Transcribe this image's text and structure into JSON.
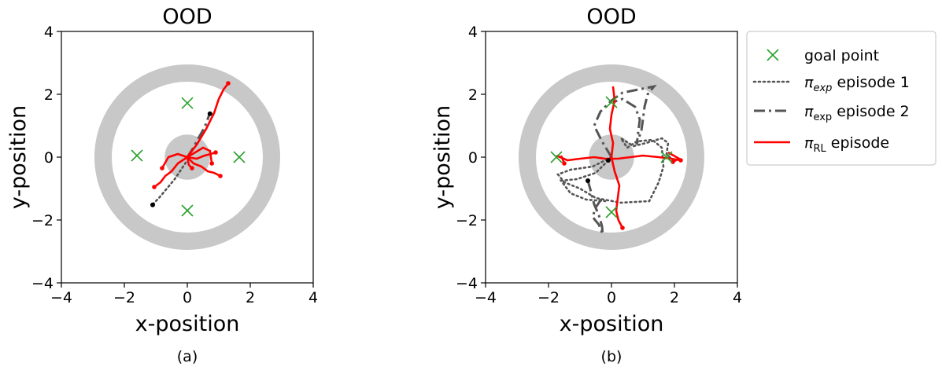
{
  "colors": {
    "ring": "#c8c8c8",
    "goal": "#2ca02c",
    "rl": "#ff0000",
    "exp": "#555555",
    "start": "#000000"
  },
  "chart_data": [
    {
      "type": "scatter",
      "title": "OOD",
      "caption": "(a)",
      "xlabel": "x-position",
      "ylabel": "y-position",
      "xlim": [
        -4,
        4
      ],
      "ylim": [
        -4,
        4
      ],
      "xticks": [
        "−4",
        "−2",
        "0",
        "2",
        "4"
      ],
      "yticks": [
        "4",
        "2",
        "0",
        "−2",
        "−4"
      ],
      "regions": {
        "outer_ring_outer_radius": 2.95,
        "outer_ring_inner_radius": 2.4,
        "inner_disk_radius": 0.72
      },
      "goal_points": [
        [
          0,
          1.72
        ],
        [
          -1.6,
          0.05
        ],
        [
          1.65,
          0
        ],
        [
          0,
          -1.7
        ]
      ],
      "series": [
        {
          "kind": "exp1",
          "points": [
            [
              -1.1,
              -1.5
            ],
            [
              -0.9,
              -1.3
            ],
            [
              -0.65,
              -1.0
            ],
            [
              -0.4,
              -0.7
            ],
            [
              -0.2,
              -0.4
            ],
            [
              0,
              -0.1
            ]
          ]
        },
        {
          "kind": "exp2",
          "points": [
            [
              0,
              0
            ],
            [
              0.18,
              0.28
            ],
            [
              0.35,
              0.6
            ],
            [
              0.55,
              0.95
            ],
            [
              0.7,
              1.35
            ]
          ]
        },
        {
          "kind": "rl",
          "points": [
            [
              0,
              0
            ],
            [
              0.3,
              0.4
            ],
            [
              0.6,
              0.9
            ],
            [
              0.85,
              1.4
            ],
            [
              1.0,
              1.85
            ],
            [
              1.15,
              2.15
            ],
            [
              1.3,
              2.35
            ]
          ]
        },
        {
          "kind": "rl",
          "points": [
            [
              0,
              0
            ],
            [
              -0.3,
              -0.2
            ],
            [
              -0.5,
              -0.45
            ],
            [
              -0.7,
              -0.6
            ],
            [
              -0.85,
              -0.8
            ],
            [
              -1.05,
              -0.95
            ]
          ]
        },
        {
          "kind": "rl",
          "points": [
            [
              0,
              0
            ],
            [
              -0.3,
              0.1
            ],
            [
              -0.6,
              0.0
            ],
            [
              -0.8,
              -0.35
            ]
          ]
        },
        {
          "kind": "rl",
          "points": [
            [
              0,
              0
            ],
            [
              0.3,
              -0.05
            ],
            [
              0.55,
              0.05
            ],
            [
              0.75,
              0.1
            ],
            [
              0.9,
              0.15
            ]
          ]
        },
        {
          "kind": "rl",
          "points": [
            [
              0,
              0
            ],
            [
              0.2,
              -0.2
            ],
            [
              0.45,
              -0.3
            ],
            [
              0.65,
              -0.45
            ],
            [
              0.85,
              -0.5
            ],
            [
              1.05,
              -0.6
            ]
          ]
        },
        {
          "kind": "rl",
          "points": [
            [
              0,
              0
            ],
            [
              0.25,
              0.15
            ],
            [
              0.5,
              0.3
            ],
            [
              0.72,
              0.2
            ],
            [
              0.78,
              -0.2
            ]
          ]
        },
        {
          "kind": "rl",
          "points": [
            [
              0,
              0
            ],
            [
              0.05,
              -0.25
            ],
            [
              0.15,
              -0.35
            ]
          ]
        }
      ],
      "start_points": [
        [
          -1.1,
          -1.52
        ],
        [
          0.72,
          1.38
        ]
      ]
    },
    {
      "type": "scatter",
      "title": "OOD",
      "caption": "(b)",
      "xlabel": "x-position",
      "ylabel": "y-position",
      "xlim": [
        -4,
        4
      ],
      "ylim": [
        -4,
        4
      ],
      "xticks": [
        "−4",
        "−2",
        "0",
        "2",
        "4"
      ],
      "yticks": [
        "4",
        "2",
        "0",
        "−2",
        "−4"
      ],
      "regions": {
        "outer_ring_outer_radius": 2.95,
        "outer_ring_inner_radius": 2.4,
        "inner_disk_radius": 0.72
      },
      "goal_points": [
        [
          0,
          1.75
        ],
        [
          -1.75,
          0
        ],
        [
          1.75,
          0
        ],
        [
          0,
          -1.75
        ]
      ],
      "series": [
        {
          "kind": "exp1",
          "points": [
            [
              0,
              0
            ],
            [
              -0.6,
              -0.3
            ],
            [
              -1.3,
              -0.4
            ],
            [
              -1.7,
              -0.55
            ],
            [
              -1.5,
              -0.8
            ],
            [
              -1.0,
              -1.0
            ],
            [
              -0.5,
              -1.3
            ],
            [
              0.3,
              -1.45
            ],
            [
              1.2,
              -1.4
            ],
            [
              1.5,
              -0.8
            ],
            [
              1.65,
              -0.3
            ],
            [
              1.6,
              0.3
            ],
            [
              1.3,
              0.55
            ],
            [
              0.8,
              0.5
            ],
            [
              0.5,
              0.3
            ],
            [
              0.3,
              0.6
            ],
            [
              0.7,
              0.35
            ],
            [
              1.1,
              0.45
            ],
            [
              1.6,
              0.6
            ],
            [
              1.8,
              0.45
            ],
            [
              1.75,
              0.1
            ],
            [
              1.95,
              -0.1
            ]
          ]
        },
        {
          "kind": "exp1",
          "points": [
            [
              0,
              0
            ],
            [
              -0.5,
              -0.5
            ],
            [
              -1.1,
              -0.7
            ],
            [
              -1.6,
              -0.75
            ],
            [
              -1.3,
              -1.15
            ],
            [
              -0.8,
              -1.35
            ],
            [
              -0.2,
              -1.4
            ]
          ]
        },
        {
          "kind": "exp2",
          "points": [
            [
              -0.75,
              -0.75
            ],
            [
              -0.65,
              -1.1
            ],
            [
              -0.55,
              -1.5
            ],
            [
              -0.4,
              -1.85
            ],
            [
              -0.3,
              -2.2
            ],
            [
              -0.28,
              -2.45
            ],
            [
              -0.4,
              -2.15
            ],
            [
              -0.6,
              -1.9
            ],
            [
              -0.5,
              -1.6
            ],
            [
              -0.3,
              -1.3
            ]
          ]
        },
        {
          "kind": "exp2",
          "points": [
            [
              0,
              0
            ],
            [
              -0.3,
              0.5
            ],
            [
              -0.55,
              1.0
            ],
            [
              -0.35,
              1.45
            ],
            [
              0,
              1.8
            ],
            [
              0.35,
              2.05
            ],
            [
              0.85,
              2.15
            ],
            [
              1.35,
              2.25
            ],
            [
              1.15,
              2.0
            ],
            [
              1.05,
              1.6
            ],
            [
              1.0,
              1.2
            ],
            [
              0.95,
              0.85
            ],
            [
              0.8,
              0.4
            ],
            [
              0.9,
              1.2
            ],
            [
              0.75,
              1.6
            ],
            [
              0.35,
              1.85
            ],
            [
              0.05,
              1.75
            ]
          ]
        },
        {
          "kind": "rl",
          "points": [
            [
              0.05,
              2.25
            ],
            [
              0.1,
              1.8
            ],
            [
              0.0,
              1.35
            ],
            [
              -0.05,
              0.9
            ],
            [
              0.05,
              0.45
            ],
            [
              0,
              0
            ],
            [
              0.1,
              -0.45
            ],
            [
              0.25,
              -0.9
            ],
            [
              0.2,
              -1.3
            ],
            [
              0.15,
              -1.7
            ],
            [
              0.22,
              -2.0
            ],
            [
              0.35,
              -2.25
            ]
          ]
        },
        {
          "kind": "rl",
          "points": [
            [
              -1.75,
              0.05
            ],
            [
              -1.4,
              -0.1
            ],
            [
              -1.0,
              -0.05
            ],
            [
              -0.55,
              0.0
            ],
            [
              -0.2,
              -0.05
            ],
            [
              0.2,
              -0.05
            ],
            [
              0.6,
              0.0
            ],
            [
              1.0,
              0.05
            ],
            [
              1.5,
              0.0
            ],
            [
              1.9,
              -0.05
            ],
            [
              2.2,
              -0.1
            ]
          ]
        },
        {
          "kind": "rl",
          "points": [
            [
              -1.6,
              0.05
            ],
            [
              -1.5,
              -0.2
            ]
          ]
        },
        {
          "kind": "rl",
          "points": [
            [
              1.8,
              0.15
            ],
            [
              2.15,
              -0.05
            ],
            [
              1.95,
              -0.15
            ]
          ]
        }
      ],
      "start_points": [
        [
          -0.75,
          -0.75
        ],
        [
          -0.1,
          -0.1
        ]
      ]
    }
  ],
  "legend": {
    "placement": "right",
    "items": [
      {
        "kind": "goal",
        "label": "goal point"
      },
      {
        "kind": "exp1",
        "label": "π_exp episode 1"
      },
      {
        "kind": "exp2",
        "label": "π_exp episode 2"
      },
      {
        "kind": "rl",
        "label": "π_RL episode"
      }
    ]
  }
}
